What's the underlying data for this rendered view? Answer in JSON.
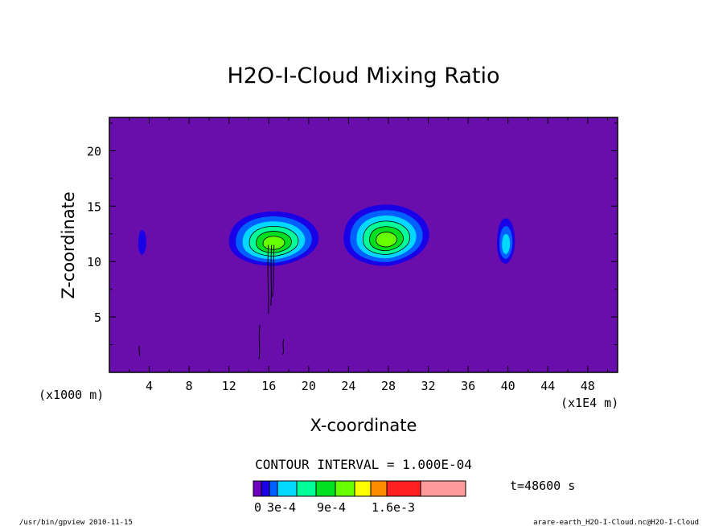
{
  "chart_data": {
    "type": "contour",
    "title": "H2O-I-Cloud Mixing Ratio",
    "xlabel": "X-coordinate",
    "ylabel": "Z-coordinate",
    "x_units_left": "(x1000 m)",
    "x_units_right": "(x1E4 m)",
    "xlim": [
      0,
      51
    ],
    "ylim": [
      0,
      23
    ],
    "x_ticks": [
      4,
      8,
      12,
      16,
      20,
      24,
      28,
      32,
      36,
      40,
      44,
      48
    ],
    "y_ticks": [
      5,
      10,
      15,
      20
    ],
    "contour_interval_text": "CONTOUR INTERVAL = 1.000E-04",
    "time_text": "t=48600 s",
    "background_color": "#6a0dad",
    "colorbar": {
      "levels": [
        0,
        0.0001,
        0.0002,
        0.0003,
        0.0004,
        0.0006,
        0.0008,
        0.001,
        0.0012,
        0.0014,
        0.0016,
        0.002
      ],
      "colors": [
        "#7000c0",
        "#1a00e6",
        "#0060ff",
        "#00d8ff",
        "#00ff99",
        "#00e020",
        "#66ff00",
        "#ffff00",
        "#ff8c00",
        "#ff2020",
        "#ff9a9a"
      ],
      "labels": [
        "0",
        "3e-4",
        "9e-4",
        "1.6e-3"
      ]
    },
    "cloud_cells": [
      {
        "x": 3.3,
        "z": 11.7,
        "rx": 0.4,
        "rz": 1.1,
        "max_level": 1
      },
      {
        "x": 16.5,
        "z": 12.0,
        "rx": 4.5,
        "rz": 2.4,
        "max_level": 6
      },
      {
        "x": 27.8,
        "z": 12.3,
        "rx": 4.3,
        "rz": 2.7,
        "max_level": 6
      },
      {
        "x": 39.8,
        "z": 11.8,
        "rx": 0.9,
        "rz": 2.0,
        "max_level": 3
      }
    ]
  },
  "footer": {
    "left": "/usr/bin/gpview  2010-11-15",
    "right": "arare-earth_H2O-I-Cloud.nc@H2O-I-Cloud"
  }
}
